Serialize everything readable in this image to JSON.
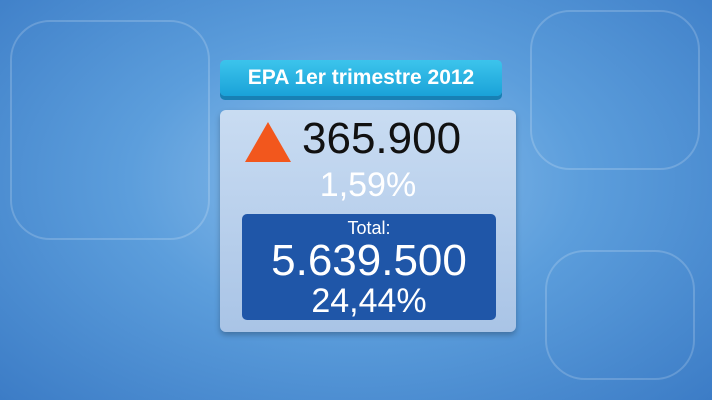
{
  "title": "EPA 1er trimestre 2012",
  "change": {
    "icon": "up-triangle-icon",
    "color": "#f2571d",
    "value": "365.900",
    "percent": "1,59%"
  },
  "total": {
    "label": "Total:",
    "value": "5.639.500",
    "percent": "24,44%"
  }
}
